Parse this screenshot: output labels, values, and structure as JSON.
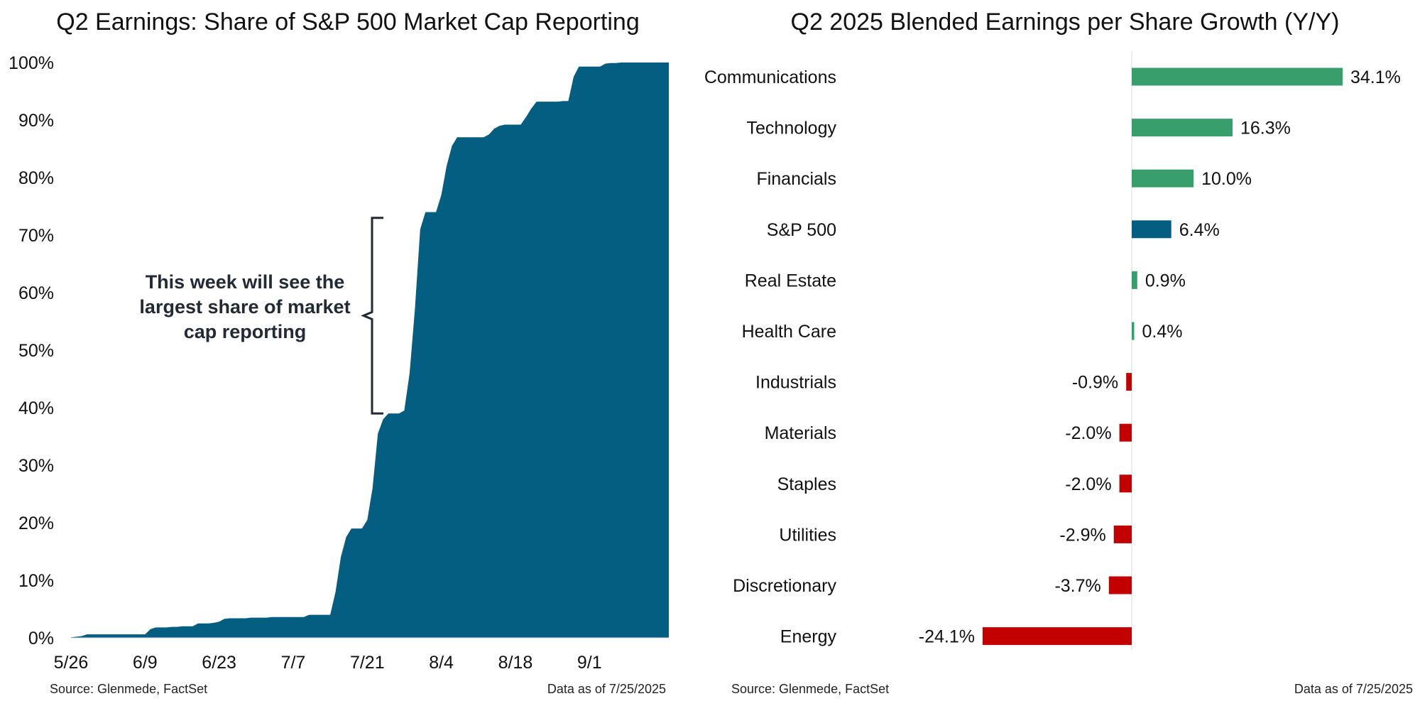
{
  "chart_data": [
    {
      "type": "area",
      "title": "Q2 Earnings: Share of S&P 500 Market Cap Reporting",
      "xlabel": "",
      "ylabel": "",
      "ylim": [
        0,
        100
      ],
      "y_ticks": [
        "0%",
        "10%",
        "20%",
        "30%",
        "40%",
        "50%",
        "60%",
        "70%",
        "80%",
        "90%",
        "100%"
      ],
      "x_ticks": [
        "5/26",
        "6/9",
        "6/23",
        "7/7",
        "7/21",
        "8/4",
        "8/18",
        "9/1"
      ],
      "x_tick_days": [
        0,
        14,
        28,
        42,
        56,
        70,
        84,
        98
      ],
      "x_range_days": [
        0,
        113
      ],
      "color": "#045e82",
      "annotation": "This week will see the largest share of market cap reporting",
      "annotation_range": [
        39,
        73
      ],
      "source": "Source: Glenmede, FactSet",
      "as_of": "Data as of 7/25/2025",
      "series": [
        {
          "x_days": [
            0,
            2,
            3,
            4,
            5,
            6,
            7,
            8,
            9,
            10,
            11,
            12,
            13,
            14,
            15,
            16,
            17,
            18,
            19,
            20,
            21,
            22,
            23,
            24,
            25,
            26,
            27,
            28,
            29,
            30,
            31,
            32,
            33,
            34,
            35,
            36,
            37,
            38,
            39,
            40,
            41,
            42,
            43,
            44,
            45,
            46,
            47,
            48,
            49,
            50,
            51,
            52,
            53,
            54,
            55,
            56,
            57,
            58,
            59,
            60,
            61,
            62,
            63,
            64,
            65,
            66,
            67,
            68,
            69,
            70,
            71,
            72,
            73,
            74,
            75,
            76,
            77,
            78,
            79,
            80,
            81,
            82,
            83,
            84,
            85,
            86,
            87,
            88,
            89,
            90,
            91,
            92,
            93,
            94,
            95,
            96,
            97,
            98,
            99,
            100,
            101,
            102,
            103,
            104,
            105,
            106,
            107,
            108,
            109,
            110,
            111,
            112,
            113
          ],
          "values": [
            0.1,
            0.3,
            0.6,
            0.6,
            0.6,
            0.6,
            0.6,
            0.6,
            0.6,
            0.6,
            0.6,
            0.6,
            0.6,
            0.6,
            1.5,
            1.8,
            1.8,
            1.8,
            1.9,
            1.9,
            2.0,
            2.0,
            2.0,
            2.5,
            2.5,
            2.5,
            2.6,
            2.8,
            3.3,
            3.4,
            3.4,
            3.4,
            3.4,
            3.5,
            3.5,
            3.5,
            3.5,
            3.6,
            3.6,
            3.6,
            3.6,
            3.6,
            3.6,
            3.6,
            4.0,
            4.0,
            4.0,
            4.0,
            4.0,
            8.0,
            14.0,
            17.5,
            19.0,
            19.0,
            19.0,
            20.5,
            26.0,
            35.5,
            38.0,
            39.0,
            39.0,
            39.0,
            39.5,
            46.0,
            57.0,
            71.0,
            74.0,
            74.0,
            74.0,
            77.0,
            82.0,
            85.5,
            87.0,
            87.0,
            87.0,
            87.0,
            87.0,
            87.0,
            87.5,
            88.5,
            89.0,
            89.2,
            89.2,
            89.2,
            89.2,
            90.5,
            92.0,
            93.2,
            93.2,
            93.2,
            93.2,
            93.2,
            93.3,
            93.3,
            97.5,
            99.3,
            99.3,
            99.3,
            99.3,
            99.3,
            99.8,
            99.9,
            99.9,
            100.0,
            100.0,
            100.0,
            100.0,
            100.0,
            100.0,
            100.0,
            100.0,
            100.0,
            100.0
          ]
        }
      ]
    },
    {
      "type": "bar",
      "orientation": "horizontal",
      "title": "Q2 2025 Blended Earnings per Share Growth (Y/Y)",
      "xlabel": "",
      "ylabel": "",
      "xlim": [
        -24.1,
        34.1
      ],
      "source": "Source: Glenmede, FactSet",
      "as_of": "Data as of 7/25/2025",
      "colors": {
        "positive": "#389e6b",
        "index": "#045e82",
        "negative": "#c20000"
      },
      "categories": [
        "Communications",
        "Technology",
        "Financials",
        "S&P 500",
        "Real Estate",
        "Health Care",
        "Industrials",
        "Materials",
        "Staples",
        "Utilities",
        "Discretionary",
        "Energy"
      ],
      "values": [
        34.1,
        16.3,
        10.0,
        6.4,
        0.9,
        0.4,
        -0.9,
        -2.0,
        -2.0,
        -2.9,
        -3.7,
        -24.1
      ],
      "labels": [
        "34.1%",
        "16.3%",
        "10.0%",
        "6.4%",
        "0.9%",
        "0.4%",
        "-0.9%",
        "-2.0%",
        "-2.0%",
        "-2.9%",
        "-3.7%",
        "-24.1%"
      ],
      "highlight": "S&P 500"
    }
  ]
}
